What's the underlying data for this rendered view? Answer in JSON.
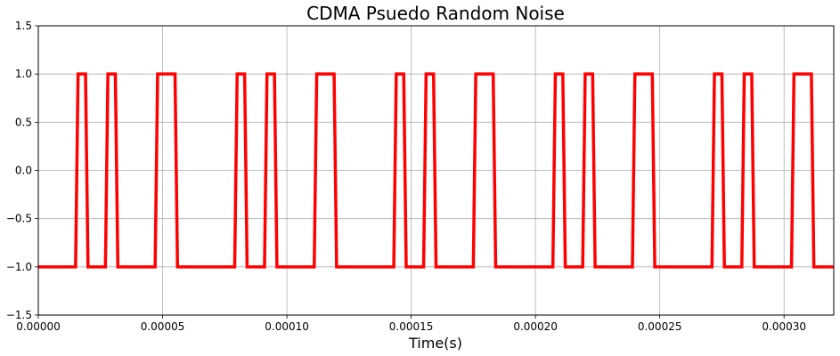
{
  "chart_data": {
    "type": "line",
    "title": "CDMA Psuedo Random Noise",
    "xlabel": "Time(s)",
    "ylabel": "",
    "xlim": [
      0,
      0.00032
    ],
    "ylim": [
      -1.5,
      1.5
    ],
    "grid": true,
    "line_color": "#ff0000",
    "x_ticks": [
      {
        "value": 0,
        "label": "0.00000"
      },
      {
        "value": 5e-05,
        "label": "0.00005"
      },
      {
        "value": 0.0001,
        "label": "0.00010"
      },
      {
        "value": 0.00015,
        "label": "0.00015"
      },
      {
        "value": 0.0002,
        "label": "0.00020"
      },
      {
        "value": 0.00025,
        "label": "0.00025"
      },
      {
        "value": 0.0003,
        "label": "0.00030"
      }
    ],
    "y_ticks": [
      {
        "value": 1.5,
        "label": "1.5"
      },
      {
        "value": 1.0,
        "label": "1.0"
      },
      {
        "value": 0.5,
        "label": "0.5"
      },
      {
        "value": 0.0,
        "label": "0.0"
      },
      {
        "value": -0.5,
        "label": "−0.5"
      },
      {
        "value": -1.0,
        "label": "−1.0"
      },
      {
        "value": -1.5,
        "label": "−1.5"
      }
    ],
    "series": [
      {
        "values": [
          [
            0,
            -1
          ],
          [
            1.5e-05,
            -1
          ],
          [
            1.6e-05,
            1
          ],
          [
            1.9e-05,
            1
          ],
          [
            2e-05,
            -1
          ],
          [
            2.7e-05,
            -1
          ],
          [
            2.8e-05,
            1
          ],
          [
            3.1e-05,
            1
          ],
          [
            3.2e-05,
            -1
          ],
          [
            4.7e-05,
            -1
          ],
          [
            4.8e-05,
            1
          ],
          [
            5.5e-05,
            1
          ],
          [
            5.6e-05,
            -1
          ],
          [
            7.9e-05,
            -1
          ],
          [
            8e-05,
            1
          ],
          [
            8.3e-05,
            1
          ],
          [
            8.4e-05,
            -1
          ],
          [
            9.1e-05,
            -1
          ],
          [
            9.2e-05,
            1
          ],
          [
            9.5e-05,
            1
          ],
          [
            9.6e-05,
            -1
          ],
          [
            0.000111,
            -1
          ],
          [
            0.000112,
            1
          ],
          [
            0.000119,
            1
          ],
          [
            0.00012,
            -1
          ],
          [
            0.000143,
            -1
          ],
          [
            0.000144,
            1
          ],
          [
            0.000147,
            1
          ],
          [
            0.000148,
            -1
          ],
          [
            0.000155,
            -1
          ],
          [
            0.000156,
            1
          ],
          [
            0.000159,
            1
          ],
          [
            0.00016,
            -1
          ],
          [
            0.000175,
            -1
          ],
          [
            0.000176,
            1
          ],
          [
            0.000183,
            1
          ],
          [
            0.000184,
            -1
          ],
          [
            0.000207,
            -1
          ],
          [
            0.000208,
            1
          ],
          [
            0.000211,
            1
          ],
          [
            0.000212,
            -1
          ],
          [
            0.000219,
            -1
          ],
          [
            0.00022,
            1
          ],
          [
            0.000223,
            1
          ],
          [
            0.000224,
            -1
          ],
          [
            0.000239,
            -1
          ],
          [
            0.00024,
            1
          ],
          [
            0.000247,
            1
          ],
          [
            0.000248,
            -1
          ],
          [
            0.000271,
            -1
          ],
          [
            0.000272,
            1
          ],
          [
            0.000275,
            1
          ],
          [
            0.000276,
            -1
          ],
          [
            0.000283,
            -1
          ],
          [
            0.000284,
            1
          ],
          [
            0.000287,
            1
          ],
          [
            0.000288,
            -1
          ],
          [
            0.000303,
            -1
          ],
          [
            0.000304,
            1
          ],
          [
            0.000311,
            1
          ],
          [
            0.000312,
            -1
          ],
          [
            0.00032,
            -1
          ]
        ]
      }
    ]
  }
}
